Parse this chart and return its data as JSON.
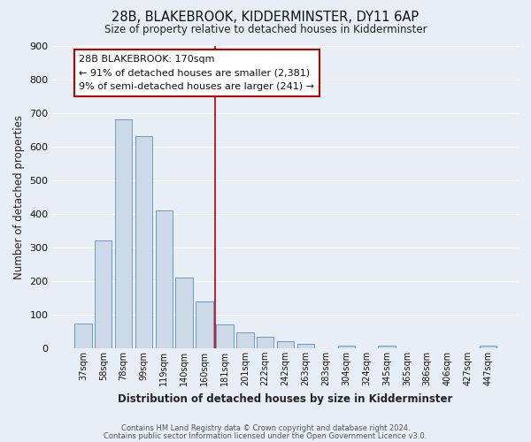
{
  "title": "28B, BLAKEBROOK, KIDDERMINSTER, DY11 6AP",
  "subtitle": "Size of property relative to detached houses in Kidderminster",
  "xlabel": "Distribution of detached houses by size in Kidderminster",
  "ylabel": "Number of detached properties",
  "bar_labels": [
    "37sqm",
    "58sqm",
    "78sqm",
    "99sqm",
    "119sqm",
    "140sqm",
    "160sqm",
    "181sqm",
    "201sqm",
    "222sqm",
    "242sqm",
    "263sqm",
    "283sqm",
    "304sqm",
    "324sqm",
    "345sqm",
    "365sqm",
    "386sqm",
    "406sqm",
    "427sqm",
    "447sqm"
  ],
  "bar_heights": [
    72,
    320,
    680,
    630,
    410,
    210,
    140,
    70,
    48,
    33,
    22,
    12,
    0,
    8,
    0,
    8,
    0,
    0,
    0,
    0,
    8
  ],
  "bar_color": "#ccd9e8",
  "bar_edge_color": "#7098b8",
  "vline_x_index": 7,
  "vline_color": "#bb0000",
  "ylim": [
    0,
    900
  ],
  "yticks": [
    0,
    100,
    200,
    300,
    400,
    500,
    600,
    700,
    800,
    900
  ],
  "annotation_title": "28B BLAKEBROOK: 170sqm",
  "annotation_line1": "← 91% of detached houses are smaller (2,381)",
  "annotation_line2": "9% of semi-detached houses are larger (241) →",
  "annotation_box_color": "#ffffff",
  "annotation_box_edge": "#bb0000",
  "plot_bg_color": "#e8eef5",
  "fig_bg_color": "#e8eef5",
  "grid_color": "#ffffff",
  "footer1": "Contains HM Land Registry data © Crown copyright and database right 2024.",
  "footer2": "Contains public sector information licensed under the Open Government Licence v3.0."
}
